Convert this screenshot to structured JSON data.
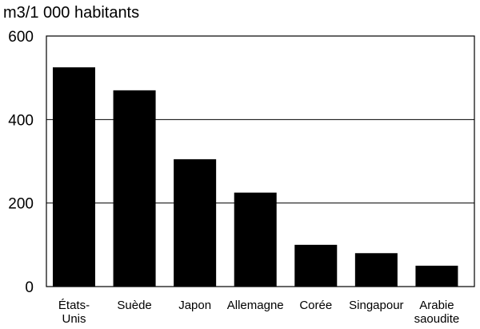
{
  "chart_data": {
    "type": "bar",
    "ylabel": "m3/1 000 habitants",
    "categories": [
      [
        "États-",
        "Unis"
      ],
      [
        "Suède"
      ],
      [
        "Japon"
      ],
      [
        "Allemagne"
      ],
      [
        "Corée"
      ],
      [
        "Singapour"
      ],
      [
        "Arabie",
        "saoudite"
      ]
    ],
    "values": [
      525,
      470,
      305,
      225,
      100,
      80,
      50
    ],
    "ylim": [
      0,
      600
    ],
    "yticks": [
      0,
      200,
      400,
      600
    ],
    "grid": true,
    "bar_color": "#000000"
  }
}
